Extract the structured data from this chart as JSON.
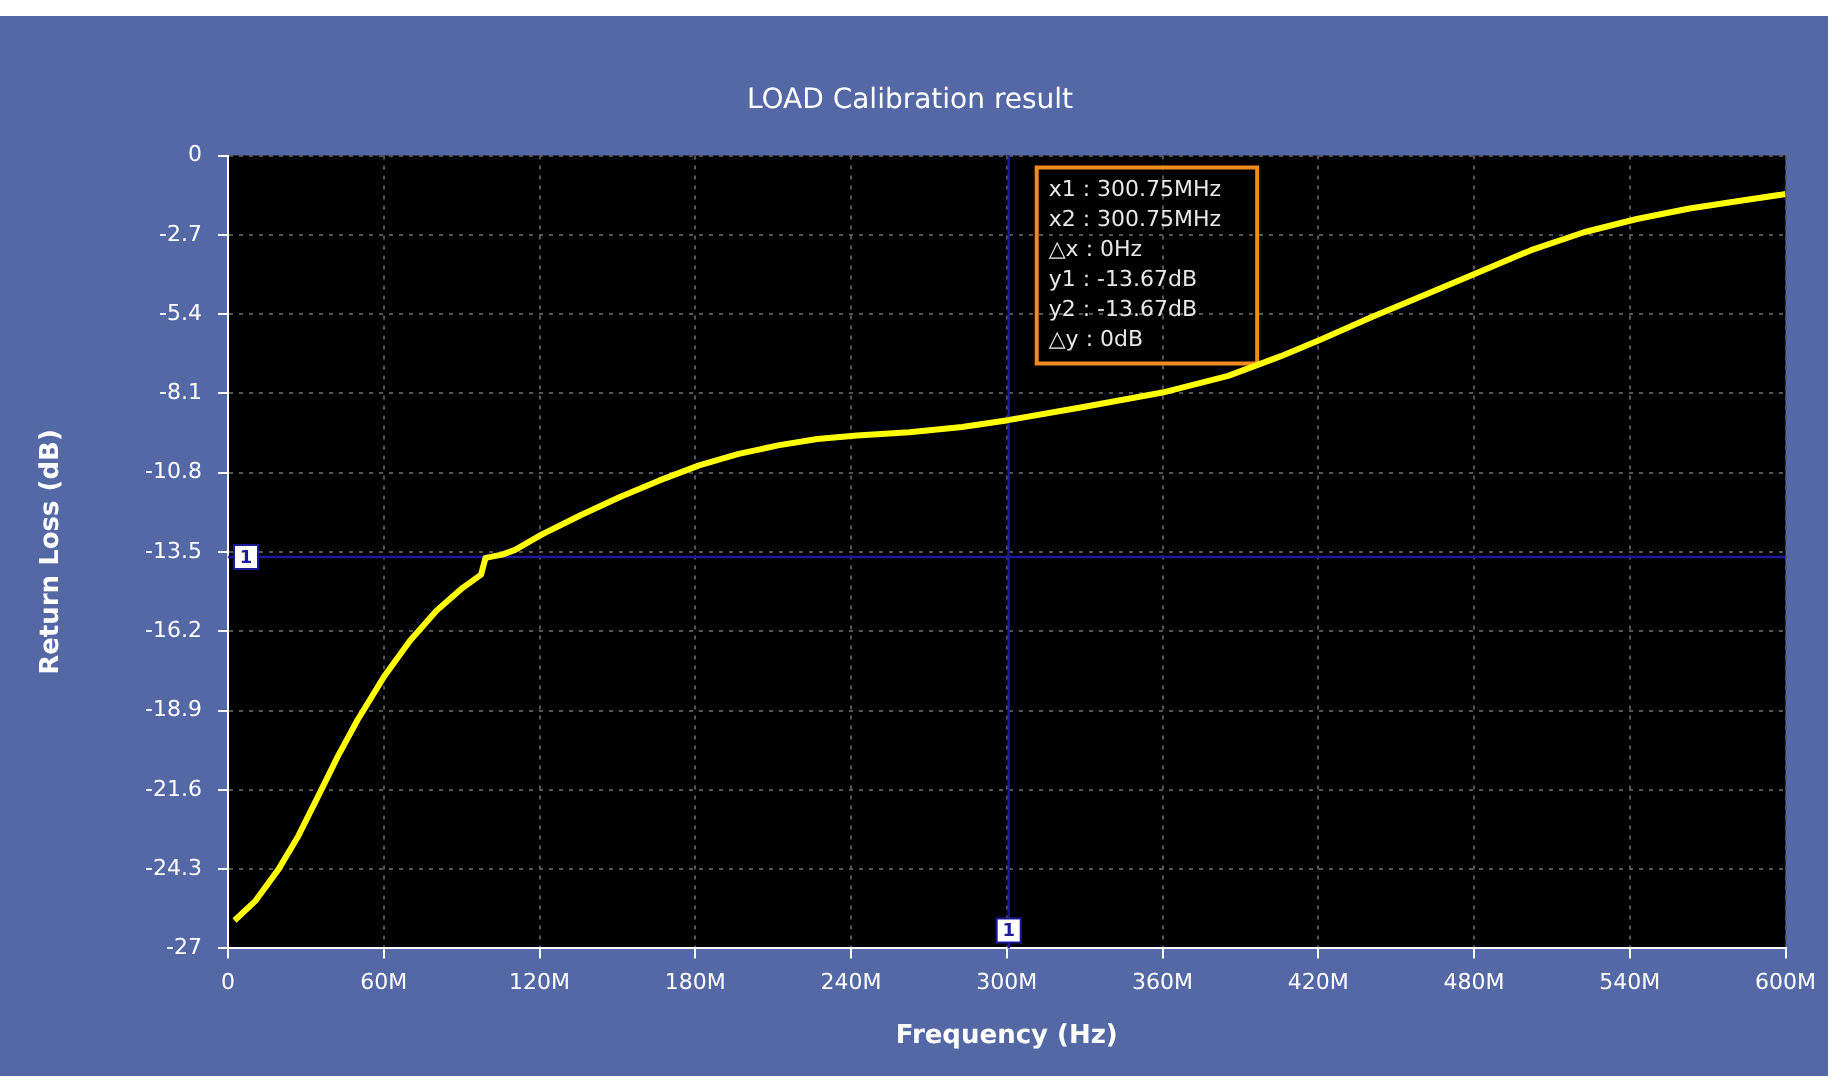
{
  "chart_data": {
    "type": "line",
    "title": "LOAD Calibration result",
    "xlabel": "Frequency (Hz)",
    "ylabel": "Return Loss (dB)",
    "x": [
      2.5,
      10.6,
      19.5,
      27.1,
      34.7,
      42.3,
      49.9,
      60,
      70.1,
      80.3,
      90.4,
      97.5,
      99.2,
      105.6,
      110.6,
      120.8,
      136,
      151,
      166,
      181.5,
      196.7,
      211.9,
      227,
      242.3,
      262.5,
      282.8,
      300.5,
      329.5,
      360,
      385.3,
      405.6,
      420.8,
      441.1,
      461.4,
      481.8,
      502,
      522.4,
      542.7,
      563,
      583.3,
      600
    ],
    "series": [
      {
        "color": "#ffff00",
        "values": [
          -26.05,
          -25.38,
          -24.3,
          -23.17,
          -21.82,
          -20.46,
          -19.22,
          -17.76,
          -16.52,
          -15.5,
          -14.72,
          -14.27,
          -13.7,
          -13.59,
          -13.43,
          -12.91,
          -12.24,
          -11.63,
          -11.07,
          -10.55,
          -10.16,
          -9.87,
          -9.65,
          -9.53,
          -9.42,
          -9.24,
          -9.01,
          -8.56,
          -8.07,
          -7.5,
          -6.83,
          -6.27,
          -5.48,
          -4.73,
          -3.97,
          -3.22,
          -2.61,
          -2.16,
          -1.8,
          -1.53,
          -1.31
        ]
      }
    ],
    "xlim": [
      0,
      600
    ],
    "xticks": [
      0,
      {
        "value": 60,
        "label": "60M"
      },
      {
        "value": 120,
        "label": "120M"
      },
      {
        "value": 180,
        "label": "180M"
      },
      {
        "value": 240,
        "label": "240M"
      },
      {
        "value": 300,
        "label": "300M"
      },
      {
        "value": 360,
        "label": "360M"
      },
      {
        "value": 420,
        "label": "420M"
      },
      {
        "value": 480,
        "label": "480M"
      },
      {
        "value": 540,
        "label": "540M"
      },
      {
        "value": 600,
        "label": "600M"
      }
    ],
    "ylim": [
      -27,
      0
    ],
    "yticks": [
      0,
      -2.7,
      -5.4,
      -8.1,
      -10.8,
      -13.5,
      -16.2,
      -18.9,
      -21.6,
      -24.3,
      -27
    ],
    "ref_lines": [
      {
        "axis": "y",
        "value": -13.67,
        "color": "#1a1a9a"
      },
      {
        "axis": "x",
        "value": 300.75,
        "color": "#1a1a9a"
      }
    ],
    "annotations": [
      {
        "text": "1",
        "x": 0,
        "y": -13.67
      },
      {
        "text": "1",
        "x": 300.75,
        "y": -27
      },
      "x1 : 300.75MHz",
      "x2 : 300.75MHz",
      "△x : 0Hz",
      "y1 : -13.67dB",
      "y2 : -13.67dB",
      "△y : 0dB"
    ],
    "grid": true,
    "legend": false,
    "marker": "none",
    "line_style": "solid"
  }
}
